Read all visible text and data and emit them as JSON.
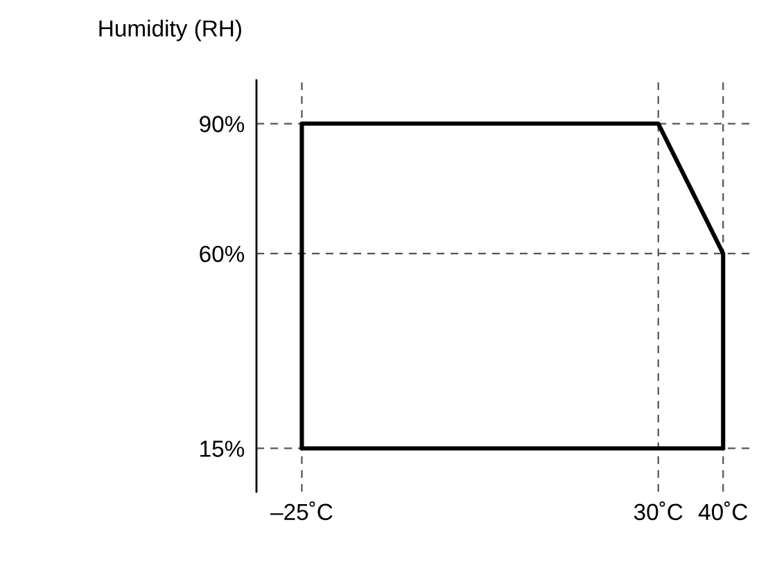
{
  "chart_data": {
    "type": "line",
    "ylabel": "Humidity (RH)",
    "series": [
      {
        "color": "#000000",
        "x": [
          -25,
          -25,
          30,
          40,
          40
        ],
        "values": [
          15,
          90,
          90,
          60,
          15
        ]
      },
      {
        "color": "#000000",
        "x": [
          -25,
          40
        ],
        "values": [
          15,
          15
        ]
      }
    ],
    "xlim": [
      -32,
      45
    ],
    "ylim": [
      5,
      100
    ],
    "xticks": [
      {
        "value": -25,
        "label": "–25˚C"
      },
      {
        "value": 30,
        "label": "30˚C"
      },
      {
        "value": 40,
        "label": "40˚C"
      }
    ],
    "yticks": [
      {
        "value": 15,
        "label": "15%"
      },
      {
        "value": 60,
        "label": "60%"
      },
      {
        "value": 90,
        "label": "90%"
      }
    ],
    "grid": true,
    "marker": "none",
    "line_style": "solid"
  }
}
